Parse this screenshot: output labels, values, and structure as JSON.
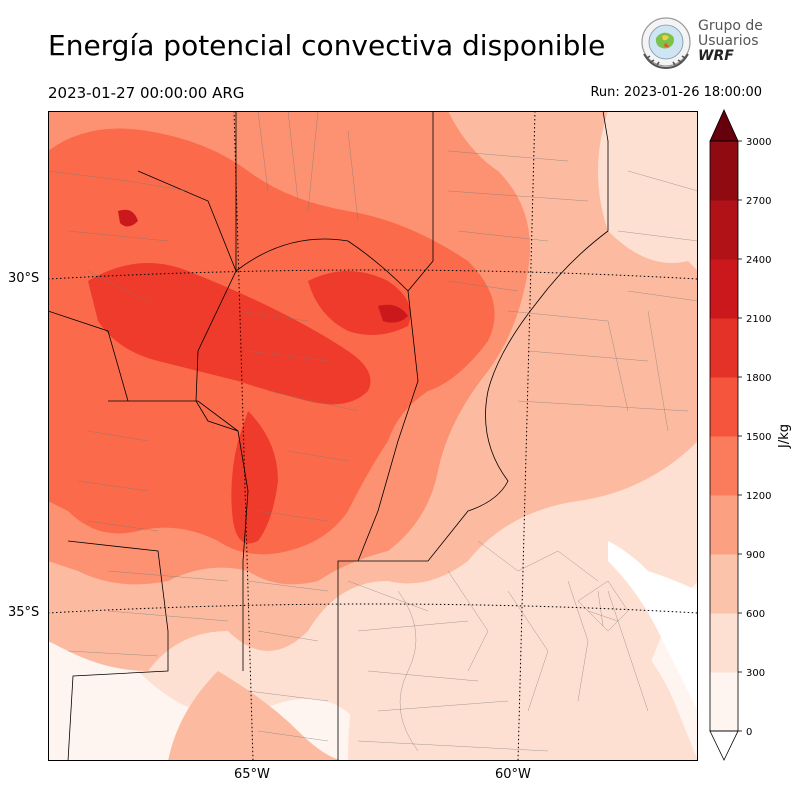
{
  "header": {
    "title": "Energía potencial convectiva disponible",
    "valid_time": "2023-01-27 00:00:00 ARG",
    "run": "Run: 2023-01-26 18:00:00"
  },
  "logo": {
    "line1": "Grupo de",
    "line2": "Usuarios",
    "line3": "WRF"
  },
  "map": {
    "lat_labels": [
      "30°S",
      "35°S"
    ],
    "lon_labels": [
      "65°W",
      "60°W"
    ],
    "field_colors": {
      "0": "#fff5f0",
      "300": "#fee0d2",
      "600": "#fcbba1",
      "900": "#fc9272",
      "1200": "#fb6a4a",
      "1500": "#ef3b2c",
      "1800": "#cb181d"
    }
  },
  "colorbar": {
    "label": "J/kg",
    "ticks": [
      "0",
      "300",
      "600",
      "900",
      "1200",
      "1500",
      "1800",
      "2100",
      "2400",
      "2700",
      "3000"
    ],
    "colors": [
      "#fff5f0",
      "#fee0d2",
      "#fcc3ab",
      "#fca082",
      "#fb7c5c",
      "#f5553d",
      "#e53228",
      "#cb181d",
      "#b11218",
      "#900a12",
      "#67000d"
    ],
    "extend_over_color": "#67000d",
    "extend_under_color": "#ffffff"
  }
}
